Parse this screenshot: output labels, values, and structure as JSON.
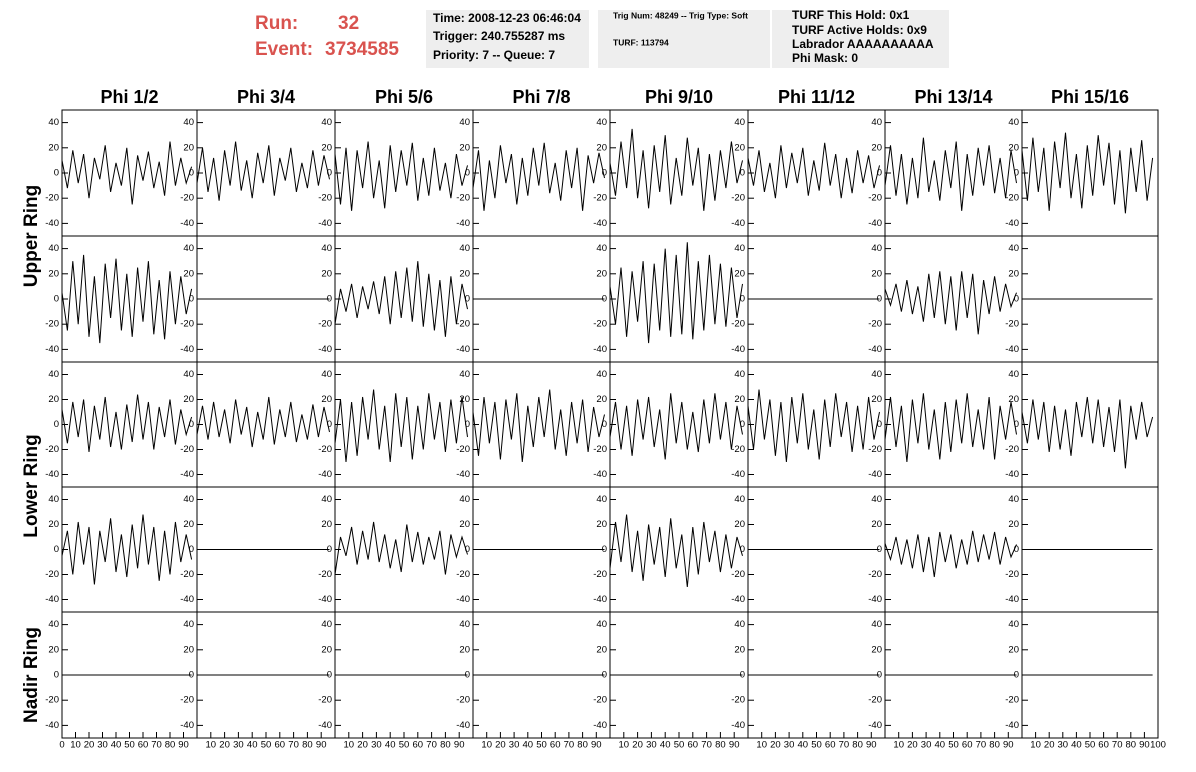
{
  "header": {
    "run_label": "Run:",
    "run": "32",
    "event_label": "Event:",
    "event": "3734585",
    "box1": [
      "Time: 2008-12-23 06:46:04",
      "Trigger: 240.755287 ms",
      "Priority: 7 -- Queue: 7"
    ],
    "box2": [
      "Trig Num: 48249 -- Trig Type: Soft",
      "TURF: 113794"
    ],
    "box3": [
      "TURF This Hold: 0x1",
      "TURF Active Holds: 0x9",
      "Labrador AAAAAAAAAA",
      "Phi Mask: 0"
    ]
  },
  "columns": [
    "Phi 1/2",
    "Phi 3/4",
    "Phi 5/6",
    "Phi 7/8",
    "Phi 9/10",
    "Phi 11/12",
    "Phi 13/14",
    "Phi 15/16"
  ],
  "rows": [
    "Upper Ring",
    "Lower Ring",
    "Nadir Ring"
  ],
  "axes": {
    "x": [
      0,
      4,
      8,
      12,
      16,
      20,
      24,
      28,
      32,
      36,
      40,
      44,
      48,
      52,
      56,
      60,
      64,
      68,
      72,
      76,
      80,
      84,
      88,
      92,
      96
    ],
    "xlim": [
      0,
      100
    ],
    "ylim": [
      -50,
      50
    ],
    "yticks": [
      -40,
      -20,
      0,
      20,
      40
    ],
    "xticks": [
      0,
      10,
      20,
      30,
      40,
      50,
      60,
      70,
      80,
      90,
      100
    ]
  },
  "chart_data": [
    {
      "type": "line",
      "values": [
        10,
        -12,
        18,
        -8,
        15,
        -20,
        12,
        -5,
        22,
        -15,
        8,
        -10,
        20,
        -25,
        14,
        -6,
        17,
        -12,
        9,
        -18,
        25,
        -10,
        12,
        -8,
        5
      ]
    },
    {
      "type": "line",
      "values": [
        -8,
        20,
        -15,
        12,
        -22,
        18,
        -10,
        25,
        -14,
        10,
        -20,
        16,
        -8,
        22,
        -18,
        12,
        -6,
        20,
        -15,
        8,
        -12,
        18,
        -10,
        14,
        -5
      ]
    },
    {
      "type": "line",
      "values": [
        15,
        -25,
        20,
        -30,
        18,
        -12,
        25,
        -20,
        10,
        -28,
        22,
        -15,
        18,
        -10,
        24,
        -22,
        12,
        -18,
        20,
        -14,
        8,
        -20,
        15,
        -10,
        6
      ]
    },
    {
      "type": "line",
      "values": [
        -12,
        18,
        -30,
        10,
        -20,
        22,
        -8,
        15,
        -25,
        12,
        -18,
        20,
        -10,
        24,
        -16,
        8,
        -22,
        18,
        -12,
        20,
        -30,
        14,
        -8,
        16,
        -4
      ]
    },
    {
      "type": "line",
      "values": [
        8,
        -18,
        25,
        -12,
        35,
        -20,
        18,
        -28,
        22,
        -15,
        30,
        -25,
        12,
        -18,
        28,
        -10,
        20,
        -30,
        15,
        -22,
        18,
        -12,
        25,
        -8,
        10
      ]
    },
    {
      "type": "line",
      "values": [
        12,
        -10,
        18,
        -15,
        8,
        -20,
        22,
        -12,
        16,
        -8,
        20,
        -18,
        10,
        -14,
        24,
        -10,
        15,
        -20,
        12,
        -16,
        18,
        -8,
        14,
        -12,
        6
      ]
    },
    {
      "type": "line",
      "values": [
        -10,
        22,
        -18,
        15,
        -25,
        12,
        -20,
        28,
        -15,
        10,
        -22,
        18,
        -12,
        25,
        -30,
        15,
        -18,
        20,
        -10,
        22,
        -16,
        12,
        -20,
        18,
        -8
      ]
    },
    {
      "type": "line",
      "values": [
        18,
        -22,
        28,
        -15,
        20,
        -30,
        25,
        -12,
        32,
        -20,
        15,
        -28,
        22,
        -18,
        30,
        -10,
        24,
        -25,
        18,
        -32,
        20,
        -15,
        26,
        -22,
        12
      ]
    },
    {
      "type": "line",
      "values": [
        5,
        -25,
        30,
        -20,
        35,
        -30,
        18,
        -35,
        28,
        -15,
        32,
        -25,
        20,
        -30,
        25,
        -18,
        30,
        -28,
        15,
        -32,
        22,
        -20,
        18,
        -12,
        8
      ]
    },
    {
      "type": "line",
      "values": [
        0,
        0,
        0,
        0,
        0,
        0,
        0,
        0,
        0,
        0,
        0,
        0,
        0,
        0,
        0,
        0,
        0,
        0,
        0,
        0,
        0,
        0,
        0,
        0,
        0
      ]
    },
    {
      "type": "line",
      "values": [
        -20,
        8,
        -10,
        12,
        -15,
        10,
        -8,
        14,
        -12,
        18,
        -20,
        22,
        -15,
        25,
        -18,
        30,
        -22,
        20,
        -25,
        15,
        -30,
        18,
        -20,
        12,
        -8
      ]
    },
    {
      "type": "line",
      "values": [
        0,
        0,
        0,
        0,
        0,
        0,
        0,
        0,
        0,
        0,
        0,
        0,
        0,
        0,
        0,
        0,
        0,
        0,
        0,
        0,
        0,
        0,
        0,
        0,
        0
      ]
    },
    {
      "type": "line",
      "values": [
        10,
        -20,
        25,
        -30,
        22,
        -18,
        30,
        -35,
        28,
        -25,
        40,
        -30,
        35,
        -28,
        45,
        -32,
        30,
        -25,
        35,
        -20,
        28,
        -22,
        25,
        -15,
        12
      ]
    },
    {
      "type": "line",
      "values": [
        0,
        0,
        0,
        0,
        0,
        0,
        0,
        0,
        0,
        0,
        0,
        0,
        0,
        0,
        0,
        0,
        0,
        0,
        0,
        0,
        0,
        0,
        0,
        0,
        0
      ]
    },
    {
      "type": "line",
      "values": [
        8,
        -5,
        12,
        -10,
        15,
        -12,
        10,
        -18,
        20,
        -15,
        22,
        -20,
        18,
        -25,
        22,
        -15,
        20,
        -28,
        15,
        -12,
        18,
        -10,
        12,
        -6,
        5
      ]
    },
    {
      "type": "line",
      "values": [
        0,
        0,
        0,
        0,
        0,
        0,
        0,
        0,
        0,
        0,
        0,
        0,
        0,
        0,
        0,
        0,
        0,
        0,
        0,
        0,
        0,
        0,
        0,
        0,
        0
      ]
    },
    {
      "type": "line",
      "values": [
        12,
        -15,
        18,
        -10,
        20,
        -22,
        15,
        -12,
        22,
        -18,
        10,
        -20,
        16,
        -14,
        24,
        -12,
        18,
        -20,
        14,
        -10,
        20,
        -16,
        12,
        -8,
        6
      ]
    },
    {
      "type": "line",
      "values": [
        -8,
        15,
        -12,
        18,
        -10,
        12,
        -15,
        20,
        -8,
        14,
        -18,
        10,
        -12,
        22,
        -16,
        12,
        -10,
        18,
        -14,
        8,
        -12,
        16,
        -10,
        14,
        -6
      ]
    },
    {
      "type": "line",
      "values": [
        -15,
        20,
        -30,
        18,
        -25,
        22,
        -12,
        28,
        -20,
        15,
        -30,
        25,
        -18,
        22,
        -28,
        15,
        -20,
        25,
        -12,
        18,
        -22,
        20,
        -15,
        22,
        -10
      ]
    },
    {
      "type": "line",
      "values": [
        10,
        -25,
        22,
        -15,
        18,
        -28,
        20,
        -12,
        25,
        -30,
        15,
        -18,
        22,
        -10,
        28,
        -20,
        12,
        -25,
        18,
        -15,
        20,
        -22,
        14,
        -10,
        8
      ]
    },
    {
      "type": "line",
      "values": [
        -10,
        18,
        -20,
        15,
        -25,
        20,
        -12,
        22,
        -18,
        12,
        -28,
        25,
        -15,
        18,
        -20,
        10,
        -22,
        20,
        -15,
        25,
        -12,
        18,
        -20,
        15,
        -8
      ]
    },
    {
      "type": "line",
      "values": [
        15,
        -20,
        28,
        -12,
        20,
        -25,
        18,
        -30,
        22,
        -15,
        25,
        -20,
        12,
        -28,
        20,
        -18,
        25,
        -10,
        18,
        -22,
        15,
        -20,
        22,
        -12,
        10
      ]
    },
    {
      "type": "line",
      "values": [
        -12,
        22,
        -18,
        15,
        -30,
        20,
        -15,
        25,
        -20,
        12,
        -28,
        18,
        -22,
        20,
        -15,
        25,
        -18,
        12,
        -20,
        22,
        -28,
        15,
        -12,
        18,
        -8
      ]
    },
    {
      "type": "line",
      "values": [
        10,
        -15,
        20,
        -12,
        18,
        -22,
        15,
        -20,
        12,
        -25,
        18,
        -10,
        22,
        -15,
        20,
        -18,
        14,
        -22,
        20,
        -35,
        15,
        -12,
        18,
        -10,
        6
      ]
    },
    {
      "type": "line",
      "values": [
        -5,
        15,
        -20,
        22,
        -12,
        18,
        -28,
        15,
        -10,
        25,
        -18,
        12,
        -22,
        20,
        -15,
        28,
        -12,
        18,
        -25,
        15,
        -20,
        22,
        -10,
        12,
        -8
      ]
    },
    {
      "type": "line",
      "values": [
        0,
        0,
        0,
        0,
        0,
        0,
        0,
        0,
        0,
        0,
        0,
        0,
        0,
        0,
        0,
        0,
        0,
        0,
        0,
        0,
        0,
        0,
        0,
        0,
        0
      ]
    },
    {
      "type": "line",
      "values": [
        -20,
        10,
        -5,
        18,
        -12,
        15,
        -8,
        22,
        -10,
        12,
        -15,
        8,
        -18,
        20,
        -10,
        14,
        -12,
        10,
        -8,
        15,
        -20,
        12,
        -6,
        10,
        -4
      ]
    },
    {
      "type": "line",
      "values": [
        0,
        0,
        0,
        0,
        0,
        0,
        0,
        0,
        0,
        0,
        0,
        0,
        0,
        0,
        0,
        0,
        0,
        0,
        0,
        0,
        0,
        0,
        0,
        0,
        0
      ]
    },
    {
      "type": "line",
      "values": [
        -15,
        22,
        -10,
        28,
        -18,
        15,
        -25,
        20,
        -12,
        18,
        -22,
        25,
        -15,
        12,
        -30,
        18,
        -20,
        22,
        -10,
        15,
        -18,
        12,
        -15,
        10,
        -5
      ]
    },
    {
      "type": "line",
      "values": [
        0,
        0,
        0,
        0,
        0,
        0,
        0,
        0,
        0,
        0,
        0,
        0,
        0,
        0,
        0,
        0,
        0,
        0,
        0,
        0,
        0,
        0,
        0,
        0,
        0
      ]
    },
    {
      "type": "line",
      "values": [
        5,
        -8,
        10,
        -12,
        8,
        -15,
        12,
        -18,
        10,
        -22,
        14,
        -10,
        12,
        -15,
        8,
        -12,
        15,
        -10,
        12,
        -8,
        14,
        -12,
        10,
        -6,
        4
      ]
    },
    {
      "type": "line",
      "values": [
        0,
        0,
        0,
        0,
        0,
        0,
        0,
        0,
        0,
        0,
        0,
        0,
        0,
        0,
        0,
        0,
        0,
        0,
        0,
        0,
        0,
        0,
        0,
        0,
        0
      ]
    },
    {
      "type": "line",
      "values": [
        0,
        0,
        0,
        0,
        0,
        0,
        0,
        0,
        0,
        0,
        0,
        0,
        0,
        0,
        0,
        0,
        0,
        0,
        0,
        0,
        0,
        0,
        0,
        0,
        0
      ]
    },
    {
      "type": "line",
      "values": [
        0,
        0,
        0,
        0,
        0,
        0,
        0,
        0,
        0,
        0,
        0,
        0,
        0,
        0,
        0,
        0,
        0,
        0,
        0,
        0,
        0,
        0,
        0,
        0,
        0
      ]
    },
    {
      "type": "line",
      "values": [
        0,
        0,
        0,
        0,
        0,
        0,
        0,
        0,
        0,
        0,
        0,
        0,
        0,
        0,
        0,
        0,
        0,
        0,
        0,
        0,
        0,
        0,
        0,
        0,
        0
      ]
    },
    {
      "type": "line",
      "values": [
        0,
        0,
        0,
        0,
        0,
        0,
        0,
        0,
        0,
        0,
        0,
        0,
        0,
        0,
        0,
        0,
        0,
        0,
        0,
        0,
        0,
        0,
        0,
        0,
        0
      ]
    },
    {
      "type": "line",
      "values": [
        0,
        0,
        0,
        0,
        0,
        0,
        0,
        0,
        0,
        0,
        0,
        0,
        0,
        0,
        0,
        0,
        0,
        0,
        0,
        0,
        0,
        0,
        0,
        0,
        0
      ]
    },
    {
      "type": "line",
      "values": [
        0,
        0,
        0,
        0,
        0,
        0,
        0,
        0,
        0,
        0,
        0,
        0,
        0,
        0,
        0,
        0,
        0,
        0,
        0,
        0,
        0,
        0,
        0,
        0,
        0
      ]
    },
    {
      "type": "line",
      "values": [
        0,
        0,
        0,
        0,
        0,
        0,
        0,
        0,
        0,
        0,
        0,
        0,
        0,
        0,
        0,
        0,
        0,
        0,
        0,
        0,
        0,
        0,
        0,
        0,
        0
      ]
    },
    {
      "type": "line",
      "values": [
        0,
        0,
        0,
        0,
        0,
        0,
        0,
        0,
        0,
        0,
        0,
        0,
        0,
        0,
        0,
        0,
        0,
        0,
        0,
        0,
        0,
        0,
        0,
        0,
        0
      ]
    }
  ]
}
